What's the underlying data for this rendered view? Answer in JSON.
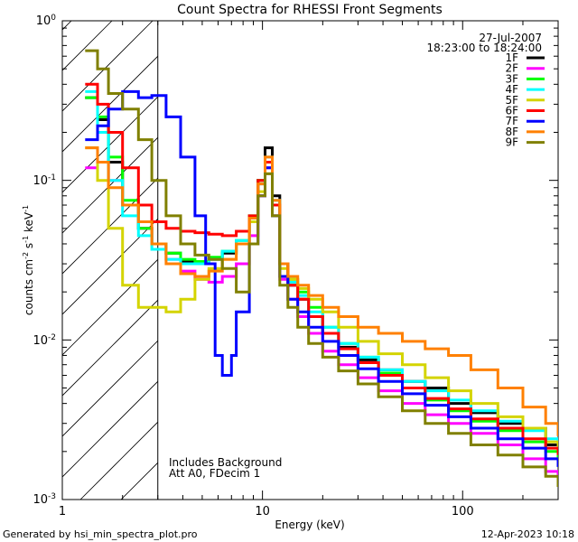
{
  "chart_data": {
    "type": "line",
    "title": "Count Spectra for RHESSI Front Segments",
    "xlabel": "Energy (keV)",
    "ylabel_parts": {
      "base": "counts cm",
      "exp1": "-2",
      "mid1": " s",
      "exp2": "-1",
      "mid2": " keV",
      "exp3": "-1"
    },
    "xscale": "log",
    "yscale": "log",
    "xlim": [
      1,
      300
    ],
    "ylim": [
      0.001,
      1
    ],
    "x_ticks": [
      {
        "v": 1,
        "label": "1"
      },
      {
        "v": 10,
        "label": "10"
      },
      {
        "v": 100,
        "label": "100"
      }
    ],
    "y_ticks": [
      {
        "v": 1,
        "base": "10",
        "exp": "0"
      },
      {
        "v": 0.1,
        "base": "10",
        "exp": "-1"
      },
      {
        "v": 0.01,
        "base": "10",
        "exp": "-2"
      },
      {
        "v": 0.001,
        "base": "10",
        "exp": "-3"
      }
    ],
    "date": "27-Jul-2007",
    "time_range": "18:23:00 to 18:24:00",
    "annotation_lines": [
      "Includes Background",
      "Att A0, FDecim 1"
    ],
    "shaded_region_keV": [
      1,
      3
    ],
    "series": [
      {
        "name": "1F",
        "color": "#000000",
        "x": [
          1.3,
          1.5,
          1.7,
          2.0,
          2.4,
          2.8,
          3.3,
          3.9,
          4.6,
          5.4,
          6.3,
          7.4,
          8.6,
          9.5,
          10.3,
          11.2,
          12.2,
          13.4,
          15,
          17,
          20,
          24,
          30,
          38,
          50,
          65,
          85,
          110,
          150,
          200,
          260,
          300
        ],
        "y": [
          0.33,
          0.24,
          0.13,
          0.07,
          0.05,
          0.04,
          0.035,
          0.031,
          0.03,
          0.032,
          0.035,
          0.04,
          0.055,
          0.1,
          0.16,
          0.08,
          0.03,
          0.022,
          0.018,
          0.014,
          0.011,
          0.009,
          0.0075,
          0.0065,
          0.0055,
          0.005,
          0.004,
          0.0035,
          0.003,
          0.0028,
          0.0022,
          0.002
        ]
      },
      {
        "name": "2F",
        "color": "#ff00ff",
        "x": [
          1.3,
          1.5,
          1.7,
          2.0,
          2.4,
          2.8,
          3.3,
          3.9,
          4.6,
          5.4,
          6.3,
          7.4,
          8.6,
          9.5,
          10.3,
          11.2,
          12.2,
          13.4,
          15,
          17,
          20,
          24,
          30,
          38,
          50,
          65,
          85,
          110,
          150,
          200,
          260,
          300
        ],
        "y": [
          0.12,
          0.13,
          0.1,
          0.07,
          0.05,
          0.04,
          0.032,
          0.027,
          0.024,
          0.023,
          0.025,
          0.03,
          0.045,
          0.08,
          0.12,
          0.06,
          0.024,
          0.018,
          0.014,
          0.011,
          0.0085,
          0.007,
          0.0058,
          0.0048,
          0.004,
          0.0034,
          0.003,
          0.0026,
          0.0022,
          0.0018,
          0.0015,
          0.0013
        ]
      },
      {
        "name": "3F",
        "color": "#00ff00",
        "x": [
          1.3,
          1.5,
          1.7,
          2.0,
          2.4,
          2.8,
          3.3,
          3.9,
          4.6,
          5.4,
          6.3,
          7.4,
          8.6,
          9.5,
          10.3,
          11.2,
          12.2,
          13.4,
          15,
          17,
          20,
          24,
          30,
          38,
          50,
          65,
          85,
          110,
          150,
          200,
          260,
          300
        ],
        "y": [
          0.33,
          0.25,
          0.14,
          0.075,
          0.05,
          0.04,
          0.035,
          0.032,
          0.031,
          0.033,
          0.036,
          0.042,
          0.06,
          0.1,
          0.13,
          0.07,
          0.03,
          0.024,
          0.02,
          0.016,
          0.012,
          0.0095,
          0.0078,
          0.0062,
          0.005,
          0.0042,
          0.0036,
          0.0031,
          0.0027,
          0.0023,
          0.002,
          0.0017
        ]
      },
      {
        "name": "4F",
        "color": "#00ffff",
        "x": [
          1.3,
          1.5,
          1.7,
          2.0,
          2.4,
          2.8,
          3.3,
          3.9,
          4.6,
          5.4,
          6.3,
          7.4,
          8.6,
          9.5,
          10.3,
          11.2,
          12.2,
          13.4,
          15,
          17,
          20,
          24,
          30,
          38,
          50,
          65,
          85,
          110,
          150,
          200,
          260,
          300
        ],
        "y": [
          0.36,
          0.2,
          0.1,
          0.06,
          0.045,
          0.037,
          0.032,
          0.03,
          0.03,
          0.032,
          0.036,
          0.042,
          0.058,
          0.095,
          0.14,
          0.075,
          0.03,
          0.023,
          0.019,
          0.015,
          0.012,
          0.0095,
          0.0078,
          0.0065,
          0.0055,
          0.0048,
          0.0042,
          0.0036,
          0.0031,
          0.0027,
          0.0024,
          0.0021
        ]
      },
      {
        "name": "5F",
        "color": "#d4d400",
        "x": [
          1.3,
          1.5,
          1.7,
          2.0,
          2.4,
          2.8,
          3.3,
          3.9,
          4.6,
          5.4,
          6.3,
          7.4,
          8.6,
          9.5,
          10.3,
          11.2,
          12.2,
          13.4,
          15,
          17,
          20,
          24,
          30,
          38,
          50,
          65,
          85,
          110,
          150,
          200,
          260,
          300
        ],
        "y": [
          0.16,
          0.1,
          0.05,
          0.022,
          0.016,
          0.016,
          0.015,
          0.018,
          0.024,
          0.028,
          0.032,
          0.04,
          0.055,
          0.085,
          0.11,
          0.06,
          0.028,
          0.024,
          0.021,
          0.018,
          0.015,
          0.012,
          0.0098,
          0.0082,
          0.007,
          0.0058,
          0.0048,
          0.004,
          0.0033,
          0.0028,
          0.0023,
          0.002
        ]
      },
      {
        "name": "6F",
        "color": "#ff0000",
        "x": [
          1.3,
          1.5,
          1.7,
          2.0,
          2.4,
          2.8,
          3.3,
          3.9,
          4.6,
          5.4,
          6.3,
          7.4,
          8.6,
          9.5,
          10.3,
          11.2,
          12.2,
          13.4,
          15,
          17,
          20,
          24,
          30,
          38,
          50,
          65,
          85,
          110,
          150,
          200,
          260,
          300
        ],
        "y": [
          0.4,
          0.3,
          0.2,
          0.12,
          0.07,
          0.055,
          0.05,
          0.048,
          0.047,
          0.046,
          0.045,
          0.048,
          0.06,
          0.1,
          0.13,
          0.07,
          0.03,
          0.022,
          0.018,
          0.014,
          0.011,
          0.0088,
          0.0072,
          0.006,
          0.005,
          0.0043,
          0.0037,
          0.0032,
          0.0028,
          0.0024,
          0.0021,
          0.0019
        ]
      },
      {
        "name": "7F",
        "color": "#0000ff",
        "x": [
          1.3,
          1.5,
          1.7,
          2.0,
          2.4,
          2.8,
          3.3,
          3.9,
          4.6,
          5.2,
          5.8,
          6.3,
          7.0,
          7.4,
          8.6,
          9.5,
          10.3,
          11.2,
          12.2,
          13.4,
          15,
          17,
          20,
          24,
          30,
          38,
          50,
          65,
          85,
          110,
          150,
          200,
          260,
          300
        ],
        "y": [
          0.18,
          0.22,
          0.28,
          0.36,
          0.33,
          0.34,
          0.25,
          0.14,
          0.06,
          0.03,
          0.008,
          0.006,
          0.008,
          0.015,
          0.04,
          0.08,
          0.12,
          0.06,
          0.025,
          0.018,
          0.015,
          0.012,
          0.0098,
          0.008,
          0.0066,
          0.0055,
          0.0046,
          0.0039,
          0.0033,
          0.0028,
          0.0024,
          0.0021,
          0.0018,
          0.0016
        ]
      },
      {
        "name": "8F",
        "color": "#ff8000",
        "x": [
          1.3,
          1.5,
          1.7,
          2.0,
          2.4,
          2.8,
          3.3,
          3.9,
          4.6,
          5.4,
          6.3,
          7.4,
          8.6,
          9.5,
          10.3,
          11.2,
          12.2,
          13.4,
          15,
          17,
          20,
          24,
          30,
          38,
          50,
          65,
          85,
          110,
          150,
          200,
          260,
          300
        ],
        "y": [
          0.16,
          0.13,
          0.09,
          0.07,
          0.055,
          0.04,
          0.03,
          0.026,
          0.025,
          0.027,
          0.032,
          0.04,
          0.058,
          0.095,
          0.14,
          0.075,
          0.03,
          0.025,
          0.022,
          0.019,
          0.016,
          0.014,
          0.012,
          0.011,
          0.0098,
          0.0088,
          0.008,
          0.0065,
          0.005,
          0.0038,
          0.003,
          0.0025
        ]
      },
      {
        "name": "9F",
        "color": "#808000",
        "x": [
          1.3,
          1.5,
          1.7,
          2.0,
          2.4,
          2.8,
          3.3,
          3.9,
          4.6,
          5.4,
          6.3,
          7.4,
          8.6,
          9.5,
          10.3,
          11.2,
          12.2,
          13.4,
          15,
          17,
          20,
          24,
          30,
          38,
          50,
          65,
          85,
          110,
          150,
          200,
          260,
          300
        ],
        "y": [
          0.65,
          0.5,
          0.35,
          0.28,
          0.18,
          0.1,
          0.06,
          0.04,
          0.034,
          0.032,
          0.028,
          0.02,
          0.04,
          0.08,
          0.11,
          0.06,
          0.022,
          0.016,
          0.012,
          0.0095,
          0.0078,
          0.0064,
          0.0053,
          0.0044,
          0.0036,
          0.003,
          0.0026,
          0.0022,
          0.0019,
          0.0016,
          0.0014,
          0.0012
        ]
      }
    ]
  },
  "footer": {
    "generated_by": "Generated by hsi_min_spectra_plot.pro",
    "timestamp": "12-Apr-2023 10:18"
  }
}
